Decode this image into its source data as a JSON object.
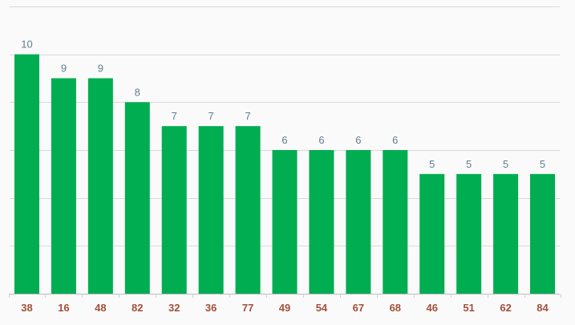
{
  "chart_data": {
    "type": "bar",
    "title": "",
    "xlabel": "",
    "ylabel": "",
    "categories": [
      "38",
      "16",
      "48",
      "82",
      "32",
      "36",
      "77",
      "49",
      "54",
      "67",
      "68",
      "46",
      "51",
      "62",
      "84"
    ],
    "values": [
      10,
      9,
      9,
      8,
      7,
      7,
      7,
      6,
      6,
      6,
      6,
      5,
      5,
      5,
      5
    ],
    "ylim": [
      0,
      12
    ],
    "grid": true,
    "legend": "none",
    "data_labels": true,
    "colors": {
      "bar": "#00ad50",
      "data_label": "#5f7f8f",
      "category_label": "#a0503a",
      "grid": "#d9d9d9",
      "background": "#fafafa"
    }
  }
}
